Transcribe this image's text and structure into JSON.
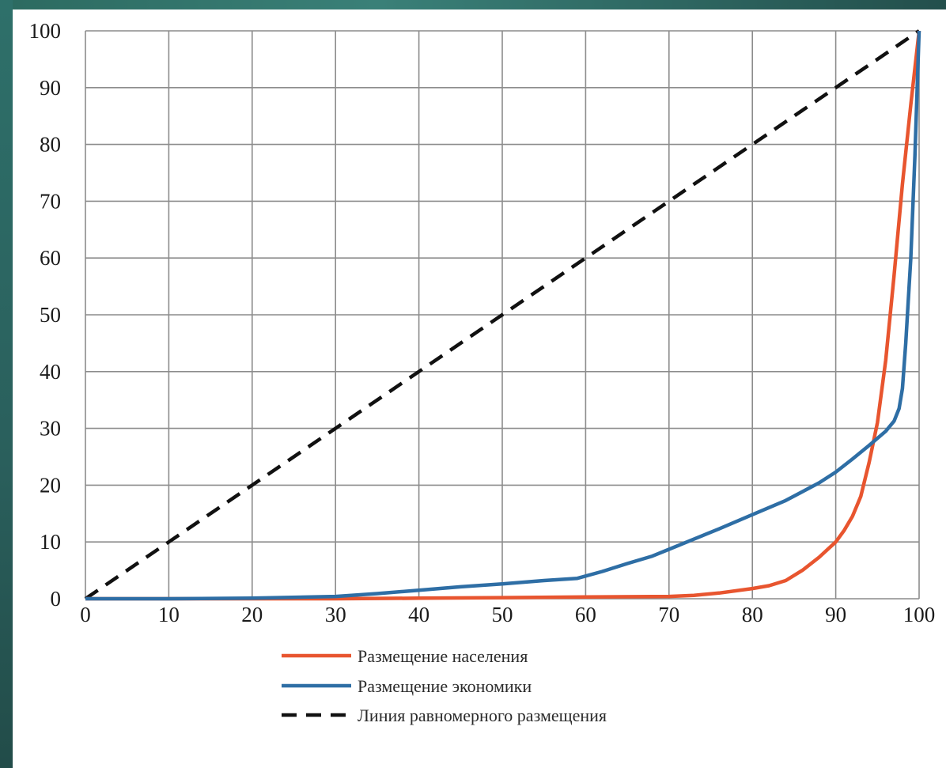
{
  "chart_data": {
    "type": "line",
    "title": "",
    "xlabel": "",
    "ylabel": "",
    "xlim": [
      0,
      100
    ],
    "ylim": [
      0,
      100
    ],
    "xticks": [
      0,
      10,
      20,
      30,
      40,
      50,
      60,
      70,
      80,
      90,
      100
    ],
    "yticks": [
      0,
      10,
      20,
      30,
      40,
      50,
      60,
      70,
      80,
      90,
      100
    ],
    "grid": true,
    "legend_position": "bottom",
    "series": [
      {
        "name": "Размещение населения",
        "color": "#e8552f",
        "style": "solid",
        "x": [
          0,
          10,
          20,
          30,
          40,
          50,
          60,
          70,
          73,
          76,
          80,
          82,
          84,
          86,
          88,
          90,
          91,
          92,
          93,
          94,
          95,
          96,
          97,
          98,
          99,
          100
        ],
        "y": [
          0,
          0,
          0,
          0,
          0.1,
          0.2,
          0.3,
          0.4,
          0.6,
          1,
          1.8,
          2.3,
          3.2,
          5,
          7.3,
          10,
          12,
          14.5,
          18,
          24,
          31,
          42,
          57,
          73,
          87,
          100
        ]
      },
      {
        "name": "Размещение экономики",
        "color": "#2e6ea5",
        "style": "solid",
        "x": [
          0,
          10,
          20,
          30,
          35,
          40,
          45,
          50,
          55,
          59,
          62,
          65,
          68,
          70,
          73,
          76,
          80,
          84,
          88,
          90,
          92,
          94,
          96,
          97,
          97.6,
          98,
          98.4,
          99,
          99.5,
          100
        ],
        "y": [
          0,
          0,
          0.1,
          0.4,
          0.9,
          1.5,
          2.1,
          2.6,
          3.2,
          3.6,
          4.8,
          6.2,
          7.5,
          8.7,
          10.5,
          12.3,
          14.8,
          17.3,
          20.4,
          22.3,
          24.6,
          27,
          29.5,
          31.3,
          33.5,
          37,
          45,
          60,
          78,
          100
        ]
      },
      {
        "name": "Линия равномерного размещения",
        "color": "#111111",
        "style": "dashed",
        "x": [
          0,
          100
        ],
        "y": [
          0,
          100
        ]
      }
    ]
  }
}
